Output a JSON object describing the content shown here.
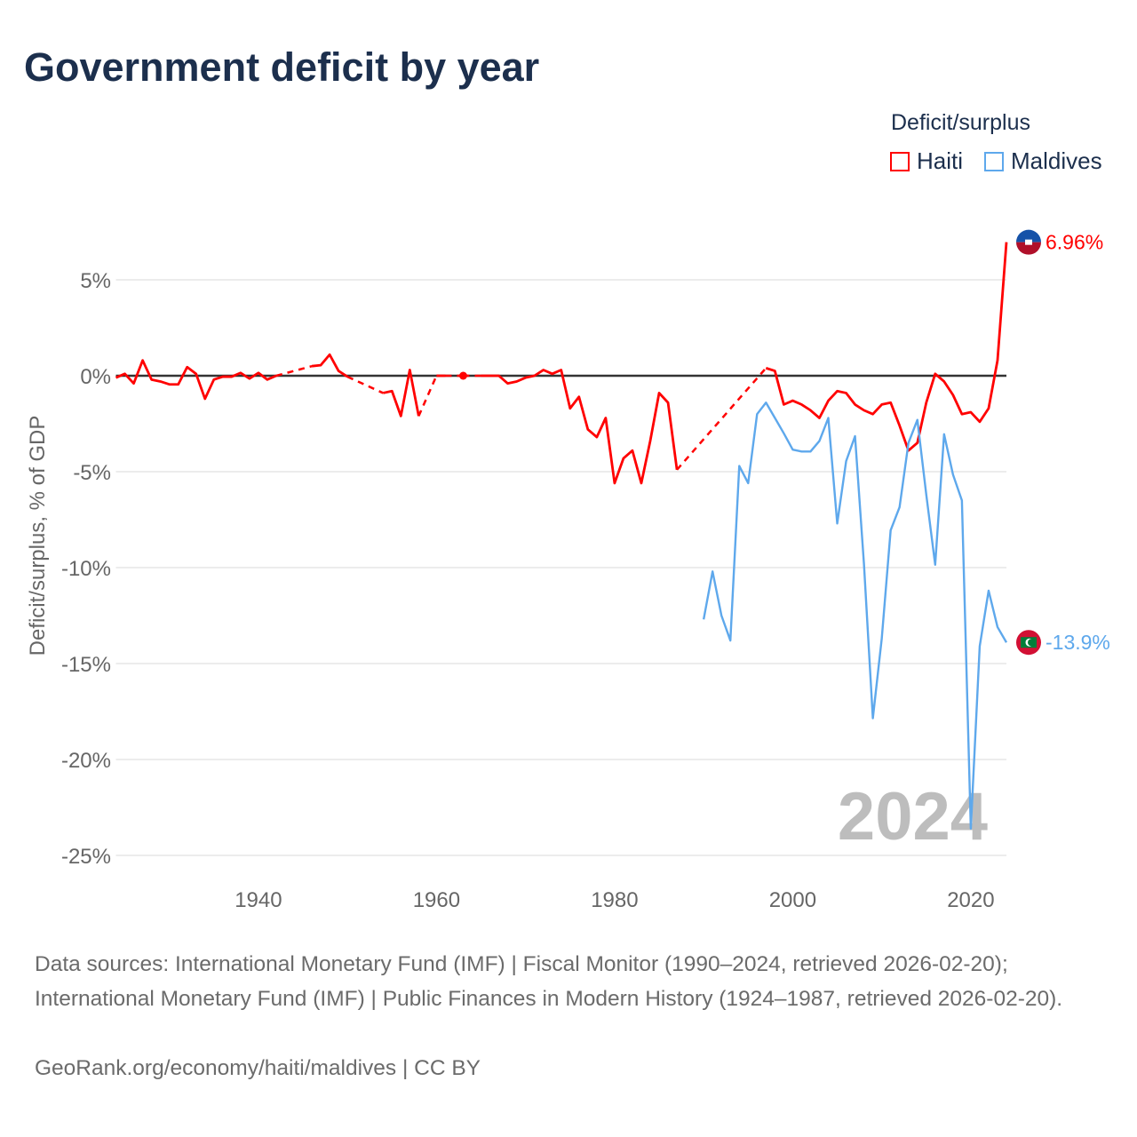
{
  "title": "Government deficit by year",
  "legend": {
    "title": "Deficit/surplus",
    "items": [
      {
        "label": "Haiti",
        "color": "#ff0000"
      },
      {
        "label": "Maldives",
        "color": "#5ea8ec"
      }
    ]
  },
  "chart_data": {
    "type": "line",
    "title": "Government deficit by year",
    "ylabel": "Deficit/surplus, % of GDP",
    "xlabel": "",
    "xlim": [
      1924,
      2024
    ],
    "ylim": [
      -25,
      8
    ],
    "x_ticks": [
      1940,
      1960,
      1980,
      2000,
      2020
    ],
    "x_tick_labels": [
      "1940",
      "1960",
      "1980",
      "2000",
      "2020"
    ],
    "y_ticks": [
      5,
      0,
      -5,
      -10,
      -15,
      -20,
      -25
    ],
    "y_tick_labels": [
      "5%",
      "0%",
      "-5%",
      "-10%",
      "-15%",
      "-20%",
      "-25%"
    ],
    "grid": true,
    "legend_position": "top-right",
    "current_year_label": "2024",
    "series": [
      {
        "name": "Haiti",
        "color": "#ff0000",
        "end_label": "6.96%",
        "points": [
          [
            1924,
            -0.1
          ],
          [
            1925,
            0.1
          ],
          [
            1926,
            -0.4
          ],
          [
            1927,
            0.8
          ],
          [
            1928,
            -0.2
          ],
          [
            1929,
            -0.3
          ],
          [
            1930,
            -0.45
          ],
          [
            1931,
            -0.45
          ],
          [
            1932,
            0.45
          ],
          [
            1933,
            0.1
          ],
          [
            1934,
            -1.2
          ],
          [
            1935,
            -0.2
          ],
          [
            1936,
            -0.05
          ],
          [
            1937,
            -0.05
          ],
          [
            1938,
            0.15
          ],
          [
            1939,
            -0.15
          ],
          [
            1940,
            0.15
          ],
          [
            1941,
            -0.2
          ],
          [
            1942,
            0
          ],
          [
            1946,
            0.5
          ],
          [
            1947,
            0.55
          ],
          [
            1948,
            1.1
          ],
          [
            1949,
            0.25
          ],
          [
            1950,
            -0.05
          ],
          [
            1954,
            -0.9
          ],
          [
            1955,
            -0.8
          ],
          [
            1956,
            -2.1
          ],
          [
            1957,
            0.3
          ],
          [
            1958,
            -2.1
          ],
          [
            1960,
            0
          ],
          [
            1961,
            0
          ],
          [
            1963,
            0
          ],
          [
            1965,
            0
          ],
          [
            1966,
            0
          ],
          [
            1967,
            0
          ],
          [
            1968,
            -0.4
          ],
          [
            1969,
            -0.3
          ],
          [
            1970,
            -0.1
          ],
          [
            1971,
            0
          ],
          [
            1972,
            0.3
          ],
          [
            1973,
            0.1
          ],
          [
            1974,
            0.3
          ],
          [
            1975,
            -1.7
          ],
          [
            1976,
            -1.1
          ],
          [
            1977,
            -2.8
          ],
          [
            1978,
            -3.2
          ],
          [
            1979,
            -2.2
          ],
          [
            1980,
            -5.6
          ],
          [
            1981,
            -4.3
          ],
          [
            1982,
            -3.9
          ],
          [
            1983,
            -5.6
          ],
          [
            1984,
            -3.4
          ],
          [
            1985,
            -0.9
          ],
          [
            1986,
            -1.4
          ],
          [
            1987,
            -4.9
          ],
          [
            1997,
            0.4
          ],
          [
            1998,
            0.25
          ],
          [
            1999,
            -1.5
          ],
          [
            2000,
            -1.3
          ],
          [
            2001,
            -1.5
          ],
          [
            2002,
            -1.8
          ],
          [
            2003,
            -2.2
          ],
          [
            2004,
            -1.3
          ],
          [
            2005,
            -0.8
          ],
          [
            2006,
            -0.9
          ],
          [
            2007,
            -1.5
          ],
          [
            2008,
            -1.8
          ],
          [
            2009,
            -2.0
          ],
          [
            2010,
            -1.5
          ],
          [
            2011,
            -1.4
          ],
          [
            2012,
            -2.6
          ],
          [
            2013,
            -3.9
          ],
          [
            2014,
            -3.5
          ],
          [
            2015,
            -1.4
          ],
          [
            2016,
            0.1
          ],
          [
            2017,
            -0.3
          ],
          [
            2018,
            -1.0
          ],
          [
            2019,
            -2.0
          ],
          [
            2020,
            -1.9
          ],
          [
            2021,
            -2.4
          ],
          [
            2022,
            -1.7
          ],
          [
            2023,
            0.8
          ],
          [
            2024,
            6.96
          ]
        ]
      },
      {
        "name": "Maldives",
        "color": "#5ea8ec",
        "end_label": "-13.9%",
        "points": [
          [
            1990,
            -12.7
          ],
          [
            1991,
            -10.2
          ],
          [
            1992,
            -12.5
          ],
          [
            1993,
            -13.8
          ],
          [
            1994,
            -4.7
          ],
          [
            1995,
            -5.6
          ],
          [
            1996,
            -2.0
          ],
          [
            1997,
            -1.4
          ],
          [
            1998,
            -2.2
          ],
          [
            1999,
            -3.0
          ],
          [
            2000,
            -3.85
          ],
          [
            2001,
            -3.95
          ],
          [
            2002,
            -3.95
          ],
          [
            2003,
            -3.4
          ],
          [
            2004,
            -2.2
          ],
          [
            2005,
            -7.7
          ],
          [
            2006,
            -4.45
          ],
          [
            2007,
            -3.15
          ],
          [
            2008,
            -9.8
          ],
          [
            2009,
            -17.85
          ],
          [
            2010,
            -13.7
          ],
          [
            2011,
            -8.05
          ],
          [
            2012,
            -6.85
          ],
          [
            2013,
            -3.5
          ],
          [
            2014,
            -2.3
          ],
          [
            2015,
            -6.2
          ],
          [
            2016,
            -9.85
          ],
          [
            2017,
            -3.05
          ],
          [
            2018,
            -5.15
          ],
          [
            2019,
            -6.5
          ],
          [
            2020,
            -23.6
          ],
          [
            2021,
            -14.1
          ],
          [
            2022,
            -11.2
          ],
          [
            2023,
            -13.1
          ],
          [
            2024,
            -13.9
          ]
        ]
      }
    ]
  },
  "footer": {
    "sources": "Data sources: International Monetary Fund (IMF) | Fiscal Monitor (1990–2024, retrieved 2026-02-20); International Monetary Fund (IMF) | Public Finances in Modern History (1924–1987, retrieved 2026-02-20).",
    "credit": "GeoRank.org/economy/haiti/maldives | CC BY"
  }
}
